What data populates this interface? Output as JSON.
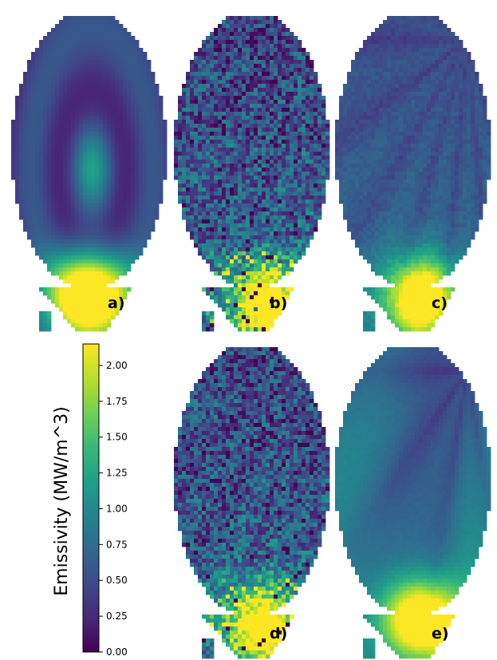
{
  "colors": {
    "viridis": [
      "#440154",
      "#482878",
      "#3e4989",
      "#31688e",
      "#26828e",
      "#1f9e89",
      "#35b779",
      "#6ece58",
      "#b5de2b",
      "#fde725"
    ],
    "background": "#ffffff"
  },
  "chart_data": {
    "type": "heatmap",
    "colormap": "viridis",
    "panels": [
      {
        "label": "a)",
        "description_style": "smooth",
        "peak": [
          0.5,
          0.88
        ],
        "peak_value": 2.1
      },
      {
        "label": "b)",
        "description_style": "noisy",
        "peak": [
          0.62,
          0.92
        ],
        "peak_value": 2.1
      },
      {
        "label": "c)",
        "description_style": "streaky",
        "peak": [
          0.55,
          0.9
        ],
        "peak_value": 2.0
      },
      {
        "label": "d)",
        "description_style": "noisy",
        "peak": [
          0.58,
          0.9
        ],
        "peak_value": 2.0
      },
      {
        "label": "e)",
        "description_style": "smooth-streaky",
        "peak": [
          0.55,
          0.88
        ],
        "peak_value": 1.9
      }
    ],
    "colorbar": {
      "label": "Emissivity (MW/m^3)",
      "range": [
        0.0,
        2.15
      ],
      "ticks": [
        "0.00",
        "0.25",
        "0.50",
        "0.75",
        "1.00",
        "1.25",
        "1.50",
        "1.75",
        "2.00"
      ],
      "tick_values": [
        0.0,
        0.25,
        0.5,
        0.75,
        1.0,
        1.25,
        1.5,
        1.75,
        2.0
      ]
    }
  }
}
